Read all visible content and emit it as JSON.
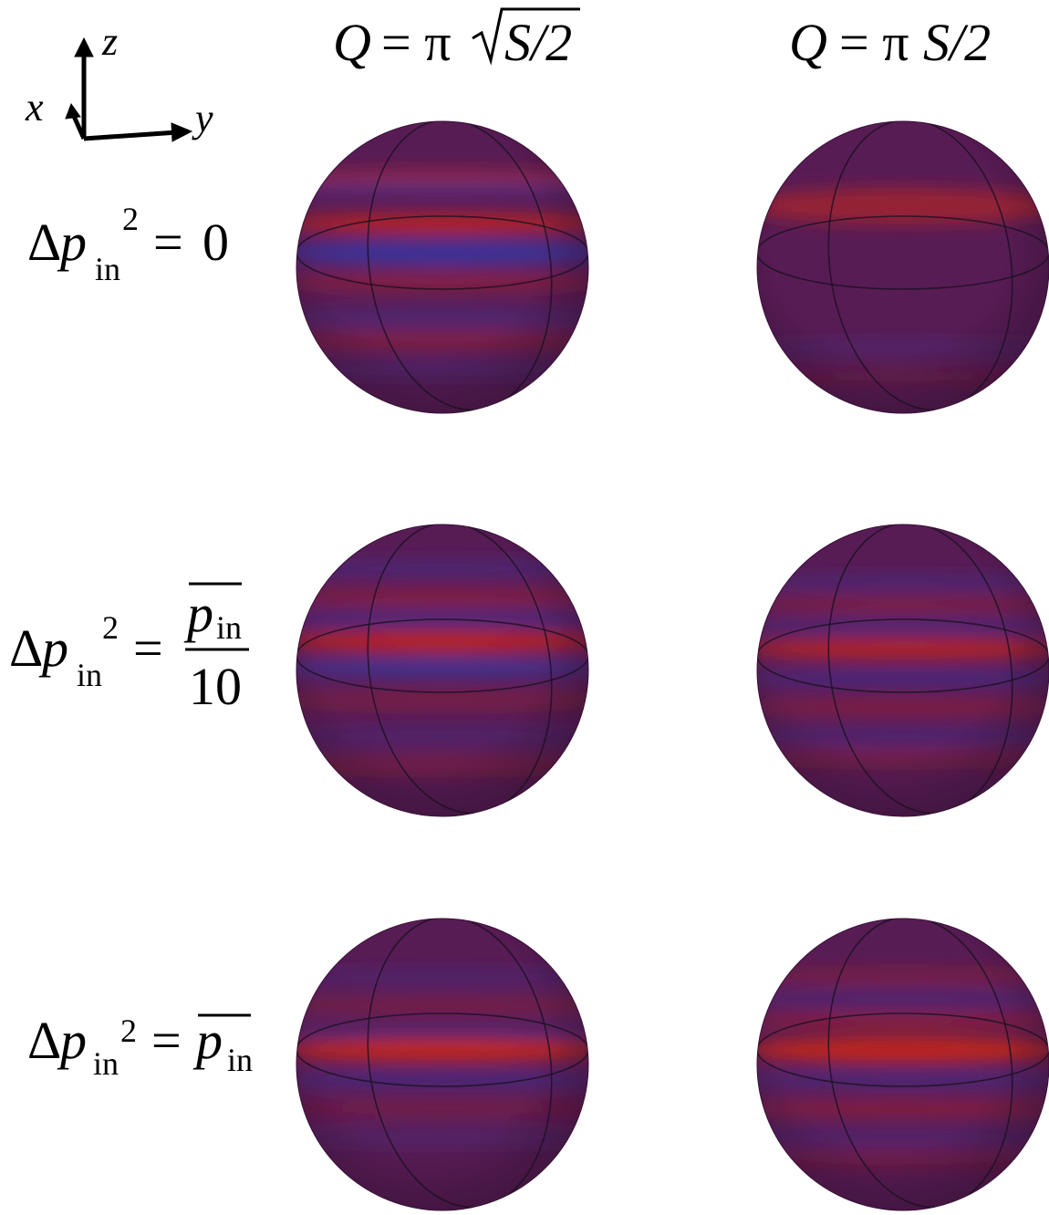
{
  "axes": {
    "z": "z",
    "x": "x",
    "y": "y"
  },
  "columns": [
    {
      "q": "Q",
      "eq": "= π",
      "rad": "S/2"
    },
    {
      "q": "Q",
      "eq": "= π",
      "rest": "S/2"
    }
  ],
  "rows": [
    {
      "delta": "Δ",
      "p": "p",
      "sub": "in",
      "sup": "2",
      "eq": "=",
      "rhs": "0"
    },
    {
      "delta": "Δ",
      "p": "p",
      "sub": "in",
      "sup": "2",
      "eq": "=",
      "num_p": "p",
      "num_sub": "in",
      "den": "10"
    },
    {
      "delta": "Δ",
      "p": "p",
      "sub": "in",
      "sup": "2",
      "eq": "=",
      "rhs_p": "p",
      "rhs_sub": "in"
    }
  ]
}
